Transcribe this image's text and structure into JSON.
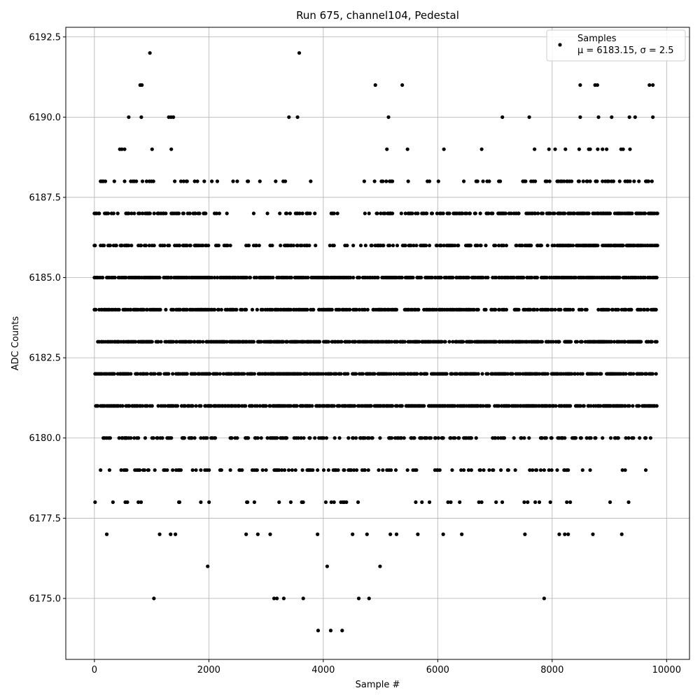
{
  "chart_data": {
    "type": "scatter",
    "title": "Run 675, channel104, Pedestal",
    "xlabel": "Sample #",
    "ylabel": "ADC Counts",
    "xlim": [
      -500,
      10400
    ],
    "ylim": [
      6173.1,
      6192.8
    ],
    "xticks": [
      0,
      2000,
      4000,
      6000,
      8000,
      10000
    ],
    "xtick_labels": [
      "0",
      "2000",
      "4000",
      "6000",
      "8000",
      "10000"
    ],
    "yticks": [
      6175.0,
      6177.5,
      6180.0,
      6182.5,
      6185.0,
      6187.5,
      6190.0,
      6192.5
    ],
    "ytick_labels": [
      "6175.0",
      "6177.5",
      "6180.0",
      "6182.5",
      "6185.0",
      "6187.5",
      "6190.0",
      "6192.5"
    ],
    "grid": true,
    "legend": {
      "placement": "top-right",
      "entries": [
        {
          "name": "Samples",
          "stats": "μ = 6183.15, σ = 2.5"
        }
      ]
    },
    "marker_color": "#000000",
    "series": [
      {
        "name": "Samples",
        "x_range": [
          0,
          9850
        ],
        "mean": 6183.15,
        "std": 2.5,
        "isolated_points": [
          [
            970,
            6192
          ],
          [
            3580,
            6192
          ],
          [
            800,
            6191
          ],
          [
            830,
            6191
          ],
          [
            4910,
            6191
          ],
          [
            5380,
            6191
          ],
          [
            8490,
            6191
          ],
          [
            8750,
            6191
          ],
          [
            8790,
            6191
          ],
          [
            9700,
            6191
          ],
          [
            9760,
            6191
          ],
          [
            600,
            6190
          ],
          [
            820,
            6190
          ],
          [
            1300,
            6190
          ],
          [
            1340,
            6190
          ],
          [
            1380,
            6190
          ],
          [
            3400,
            6190
          ],
          [
            3550,
            6190
          ],
          [
            5140,
            6190
          ],
          [
            7130,
            6190
          ],
          [
            7600,
            6190
          ],
          [
            8490,
            6190
          ],
          [
            8810,
            6190
          ],
          [
            9040,
            6190
          ],
          [
            9350,
            6190
          ],
          [
            9450,
            6190
          ],
          [
            9760,
            6190
          ],
          [
            1040,
            6175
          ],
          [
            3140,
            6175
          ],
          [
            3190,
            6175
          ],
          [
            3310,
            6175
          ],
          [
            3650,
            6175
          ],
          [
            4620,
            6175
          ],
          [
            4800,
            6175
          ],
          [
            7860,
            6175
          ],
          [
            3910,
            6174
          ],
          [
            4130,
            6174
          ],
          [
            4330,
            6174
          ]
        ]
      }
    ]
  }
}
